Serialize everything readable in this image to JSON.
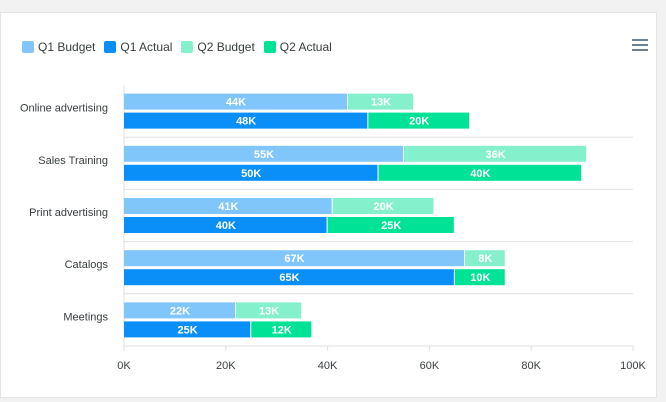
{
  "chart_data": {
    "type": "bar",
    "orientation": "horizontal",
    "categories": [
      "Online advertising",
      "Sales Training",
      "Print advertising",
      "Catalogs",
      "Meetings"
    ],
    "series": [
      {
        "name": "Q1 Budget",
        "color": "#80c6fb",
        "values": [
          44,
          55,
          41,
          67,
          22
        ]
      },
      {
        "name": "Q1 Actual",
        "color": "#0a8ef8",
        "values": [
          48,
          50,
          40,
          65,
          25
        ]
      },
      {
        "name": "Q2 Budget",
        "color": "#85f1cc",
        "values": [
          13,
          36,
          20,
          8,
          13
        ]
      },
      {
        "name": "Q2 Actual",
        "color": "#00e296",
        "values": [
          20,
          40,
          25,
          10,
          12
        ]
      }
    ],
    "stacks": [
      [
        "Q1 Budget",
        "Q2 Budget"
      ],
      [
        "Q1 Actual",
        "Q2 Actual"
      ]
    ],
    "xlim": [
      0,
      100
    ],
    "xticks": [
      "0K",
      "20K",
      "40K",
      "60K",
      "80K",
      "100K"
    ],
    "value_suffix": "K",
    "legend_position": "top-left",
    "grid": true
  },
  "toolbar": {
    "menu_icon": "hamburger-menu-icon"
  }
}
